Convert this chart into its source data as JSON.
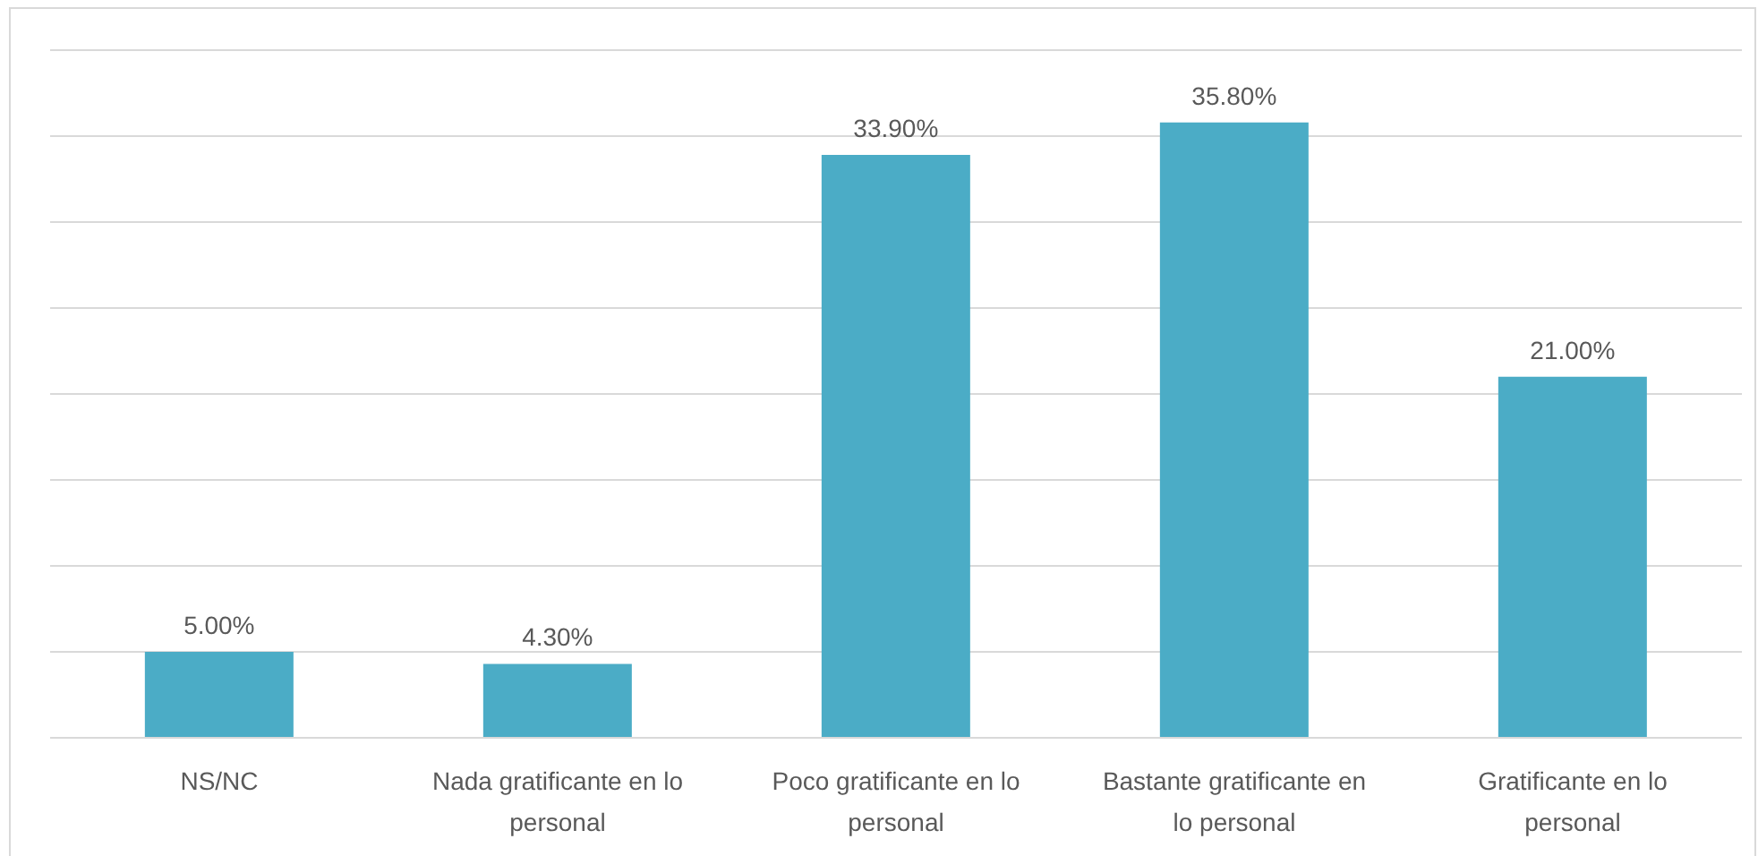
{
  "chart_data": {
    "type": "bar",
    "categories": [
      "NS/NC",
      "Nada gratificante en lo personal",
      "Poco gratificante en lo personal",
      "Bastante gratificante en lo personal",
      "Gratificante en lo personal"
    ],
    "values": [
      5,
      4.3,
      33.9,
      35.8,
      21
    ],
    "value_labels": [
      "5.00%",
      "4.30%",
      "33.90%",
      "35.80%",
      "21.00%"
    ],
    "color": "#4bacc6",
    "ylim": [
      0,
      40
    ],
    "yticks": [
      {
        "value": 0,
        "label": null
      },
      {
        "value": 5,
        "label": null
      },
      {
        "value": 10,
        "label": null
      },
      {
        "value": 15,
        "label": null
      },
      {
        "value": 20,
        "label": null
      },
      {
        "value": 25,
        "label": null
      },
      {
        "value": 30,
        "label": null
      },
      {
        "value": 35,
        "label": null
      },
      {
        "value": 40,
        "label": null
      }
    ],
    "grid": "y",
    "tick_labels": "x"
  }
}
